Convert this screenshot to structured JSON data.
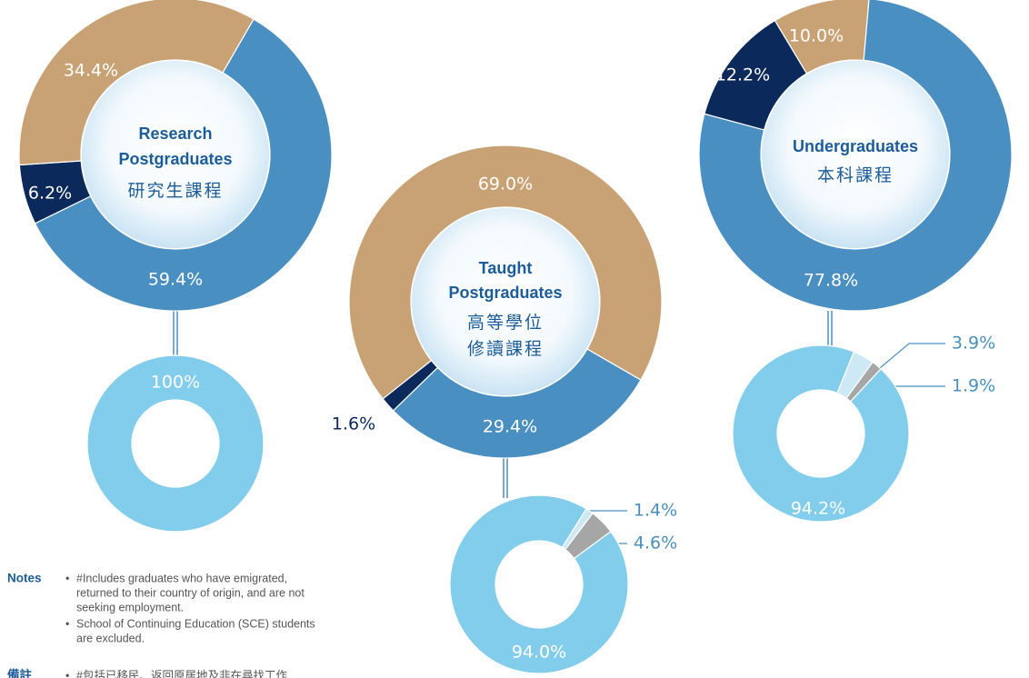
{
  "chart_data": [
    {
      "type": "donut",
      "title": [
        "Research",
        "Postgraduates",
        "研究生課程"
      ],
      "values": [
        59.4,
        6.2,
        34.4
      ],
      "value_labels": [
        "59.4%",
        "6.2%",
        "34.4%"
      ],
      "colors": [
        "#4a8fc1",
        "#0b2a5b",
        "#c8a274"
      ]
    },
    {
      "type": "donut",
      "values": [
        100
      ],
      "value_labels": [
        "100%"
      ],
      "colors": [
        "#82cdec"
      ]
    },
    {
      "type": "donut",
      "title": [
        "Taught",
        "Postgraduates",
        "高等學位",
        "修讀課程"
      ],
      "values": [
        29.4,
        1.6,
        69.0
      ],
      "value_labels": [
        "29.4%",
        "1.6%",
        "69.0%"
      ],
      "colors": [
        "#4a8fc1",
        "#0b2a5b",
        "#c8a274"
      ]
    },
    {
      "type": "donut",
      "values": [
        1.4,
        4.6,
        94.0
      ],
      "value_labels": [
        "1.4%",
        "4.6%",
        "94.0%"
      ],
      "colors": [
        "#cde9f6",
        "#a6a6a6",
        "#82cdec"
      ]
    },
    {
      "type": "donut",
      "title": [
        "Undergraduates",
        "本科課程"
      ],
      "values": [
        77.8,
        12.2,
        10.0
      ],
      "value_labels": [
        "77.8%",
        "12.2%",
        "10.0%"
      ],
      "colors": [
        "#4a8fc1",
        "#0b2a5b",
        "#c8a274"
      ]
    },
    {
      "type": "donut",
      "values": [
        3.9,
        1.9,
        94.2
      ],
      "value_labels": [
        "3.9%",
        "1.9%",
        "94.2%"
      ],
      "colors": [
        "#cde9f6",
        "#a6a6a6",
        "#82cdec"
      ]
    }
  ],
  "notes": {
    "label": "Notes",
    "items": [
      [
        "#Includes graduates who have emigrated,",
        "returned to their country of origin, and are not",
        "seeking employment."
      ],
      [
        "School of Continuing Education (SCE) students",
        "are excluded."
      ]
    ],
    "label_zh": "備註",
    "item_zh": "#包括已移民、返回原居地及非在尋找工作"
  }
}
